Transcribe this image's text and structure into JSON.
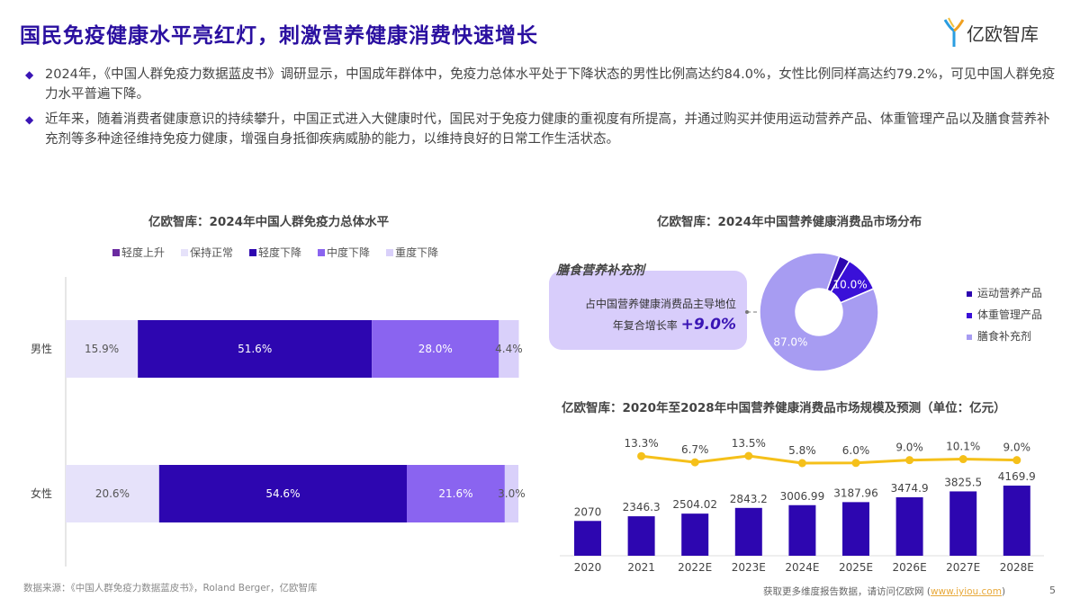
{
  "header": {
    "title": "国民免疫健康水平亮红灯，刺激营养健康消费快速增长",
    "logo_text": "亿欧智库"
  },
  "bullets": [
    "2024年，《中国人群免疫力数据蓝皮书》调研显示，中国成年群体中，免疫力总体水平处于下降状态的男性比例高达约84.0%，女性比例同样高达约79.2%，可见中国人群免疫力水平普遍下降。",
    "近年来，随着消费者健康意识的持续攀升，中国正式进入大健康时代，国民对于免疫力健康的重视度有所提高，并通过购买并使用运动营养产品、体重管理产品以及膳食营养补充剂等多种途径维持免疫力健康，增强自身抵御疾病威胁的能力，以维持良好的日常工作生活状态。"
  ],
  "chart_data": [
    {
      "type": "bar",
      "orientation": "horizontal",
      "stacked": true,
      "title": "亿欧智库：2024年中国人群免疫力总体水平",
      "categories": [
        "男性",
        "女性"
      ],
      "legend_position": "top",
      "series": [
        {
          "name": "轻度上升",
          "color": "#6a2aa0",
          "values": [
            0,
            0
          ]
        },
        {
          "name": "保持正常",
          "color": "#e6e2fa",
          "values": [
            15.9,
            20.6
          ]
        },
        {
          "name": "轻度下降",
          "color": "#2d06b0",
          "values": [
            51.6,
            54.6
          ]
        },
        {
          "name": "中度下降",
          "color": "#8a64f0",
          "values": [
            28.0,
            21.6
          ]
        },
        {
          "name": "重度下降",
          "color": "#d9d0fa",
          "values": [
            4.4,
            3.0
          ]
        }
      ],
      "xlim": [
        0,
        100
      ]
    },
    {
      "type": "pie",
      "donut": true,
      "title": "亿欧智库：2024年中国营养健康消费品市场分布",
      "slices": [
        {
          "name": "运动营养产品",
          "value": 3.0,
          "label": "",
          "color": "#2d06b0"
        },
        {
          "name": "体重管理产品",
          "value": 10.0,
          "label": "10.0%",
          "color": "#3a10d8"
        },
        {
          "name": "膳食补充剂",
          "value": 87.0,
          "label": "87.0%",
          "color": "#a79cf2"
        }
      ],
      "legend_position": "right",
      "annotation": {
        "heading": "膳食营养补充剂",
        "line1": "占中国营养健康消费品主导地位",
        "line2_prefix": "年复合增长率",
        "line2_value": "+9.0%"
      }
    },
    {
      "type": "bar",
      "title": "亿欧智库：2020年至2028年中国营养健康消费品市场规模及预测（单位：亿元）",
      "categories": [
        "2020",
        "2021",
        "2022E",
        "2023E",
        "2024E",
        "2025E",
        "2026E",
        "2027E",
        "2028E"
      ],
      "series": [
        {
          "type": "bar",
          "color": "#2d06b0",
          "values": [
            2070,
            2346.3,
            2504.02,
            2843.2,
            3006.99,
            3187.96,
            3474.9,
            3825.5,
            4169.9
          ],
          "labels": [
            "2070",
            "2346.3",
            "2504.02",
            "2843.2",
            "3006.99",
            "3187.96",
            "3474.9",
            "3825.5",
            "4169.9"
          ]
        },
        {
          "type": "line",
          "color": "#f5c01a",
          "values": [
            null,
            13.3,
            6.7,
            13.5,
            5.8,
            6.0,
            9.0,
            10.1,
            9.0
          ],
          "labels": [
            "",
            "13.3%",
            "6.7%",
            "13.5%",
            "5.8%",
            "6.0%",
            "9.0%",
            "10.1%",
            "9.0%"
          ]
        }
      ]
    }
  ],
  "source": "数据来源：《中国人群免疫力数据蓝皮书》，Roland Berger，亿欧智库",
  "footer": {
    "text": "获取更多维度报告数据，请访问亿欧网 (",
    "link": "www.iyiou.com",
    "close": ")",
    "page": "5"
  }
}
